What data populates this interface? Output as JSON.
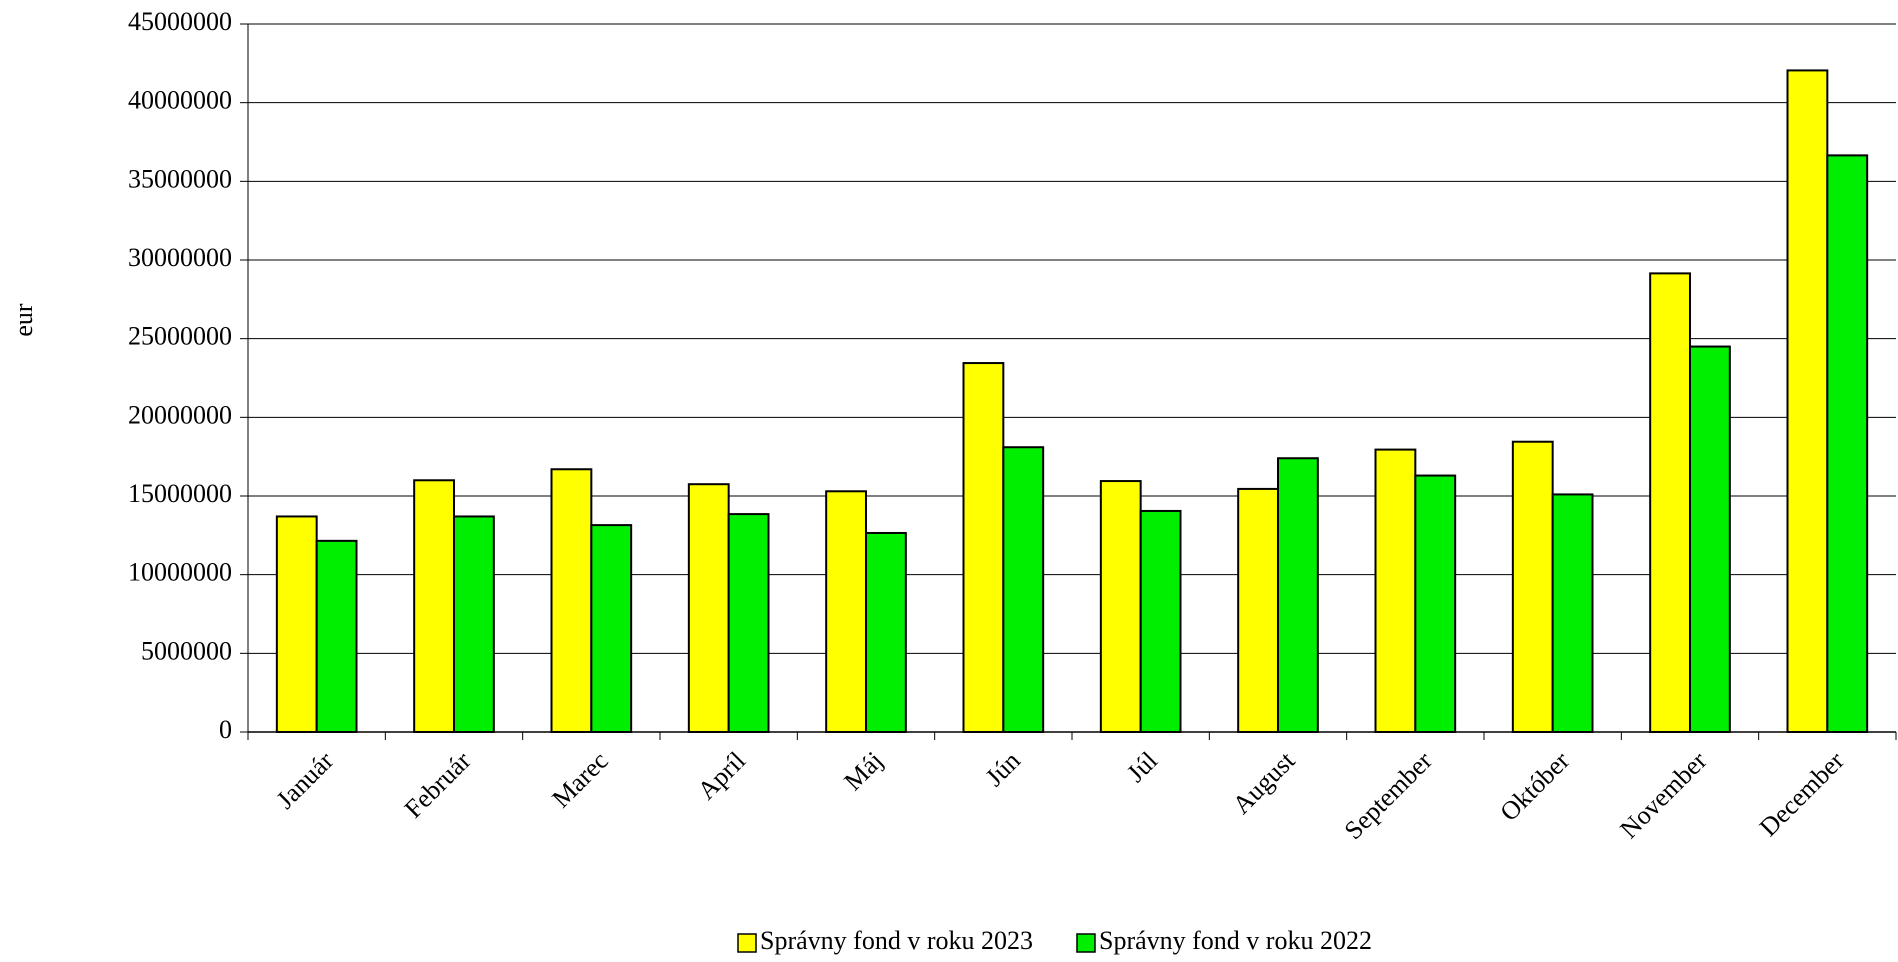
{
  "chart_data": {
    "type": "bar",
    "y_label": "eur",
    "categories": [
      "Január",
      "Február",
      "Marec",
      "Apríl",
      "Máj",
      "Jún",
      "Júl",
      "August",
      "September",
      "Október",
      "November",
      "December"
    ],
    "series": [
      {
        "name": "Správny fond v roku 2023",
        "color": "#ffff00",
        "values": [
          13700000,
          16000000,
          16700000,
          15750000,
          15300000,
          23450000,
          15950000,
          15450000,
          17950000,
          18450000,
          29150000,
          42050000
        ]
      },
      {
        "name": "Správny fond v roku 2022",
        "color": "#00ee00",
        "values": [
          12150000,
          13700000,
          13150000,
          13850000,
          12650000,
          18100000,
          14050000,
          17400000,
          16300000,
          15100000,
          24500000,
          36650000
        ]
      }
    ],
    "ylim": [
      0,
      45000000
    ],
    "yticks": [
      0,
      5000000,
      10000000,
      15000000,
      20000000,
      25000000,
      30000000,
      35000000,
      40000000,
      45000000
    ],
    "grid": true
  }
}
